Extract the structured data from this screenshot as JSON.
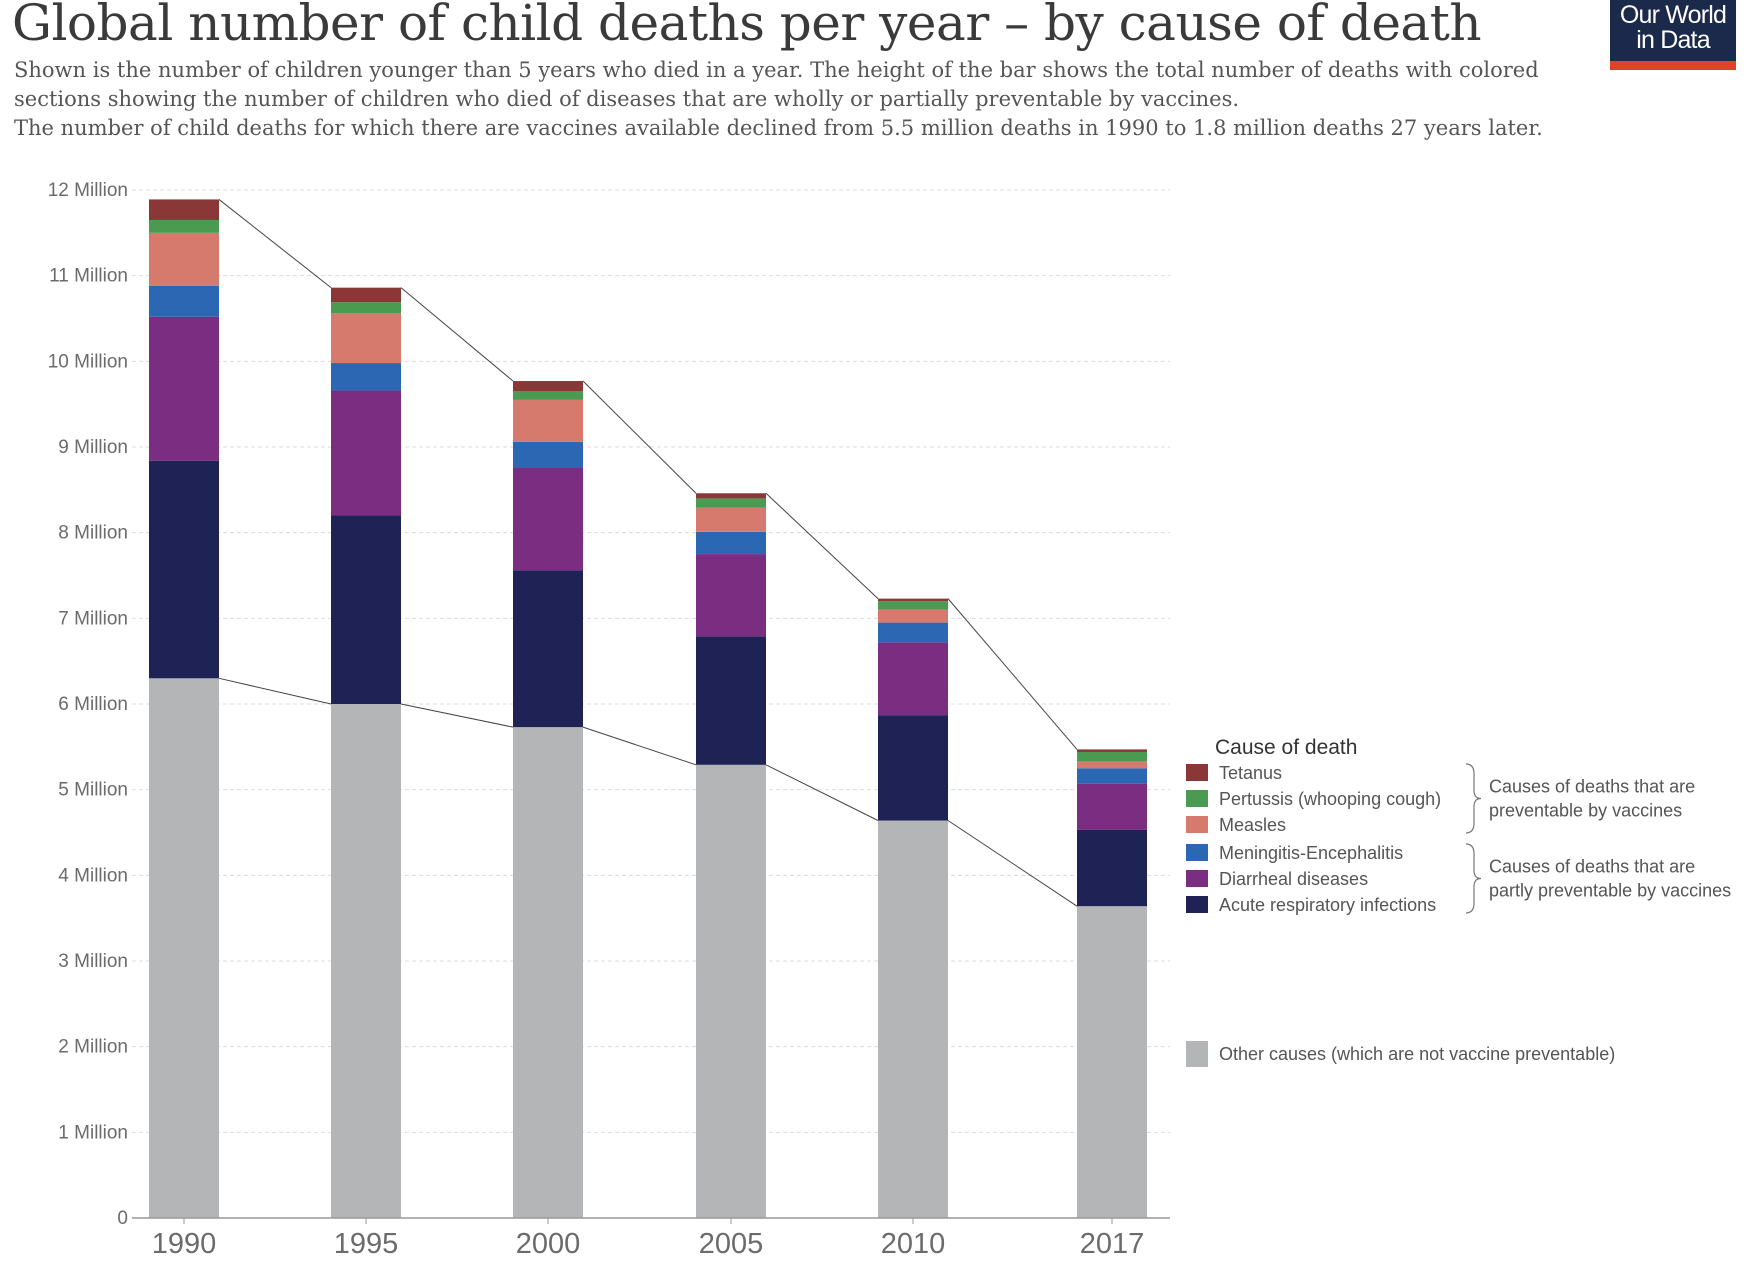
{
  "header": {
    "title": "Global number of child deaths per year – by cause of death",
    "subtitle_lines": [
      "Shown is the number of children younger than 5 years who died in a year. The height of the bar shows the total number of deaths with colored",
      "sections showing the number of children who died of diseases that are wholly or partially preventable by vaccines.",
      "The number of child deaths for which there are vaccines available declined from 5.5 million deaths in 1990 to 1.8 million deaths 27 years later."
    ],
    "logo_line1": "Our World",
    "logo_line2": "in Data"
  },
  "colors": {
    "logo_bg": "#1b2a4a",
    "logo_accent": "#d9442a",
    "axis": "#999999",
    "grid": "#dddddd"
  },
  "chart_data": {
    "type": "bar",
    "stacked": true,
    "categories": [
      "1990",
      "1995",
      "2000",
      "2005",
      "2010",
      "2017"
    ],
    "y_tick_labels": [
      "0",
      "1 Million",
      "2 Million",
      "3 Million",
      "4 Million",
      "5 Million",
      "6 Million",
      "7 Million",
      "8 Million",
      "9 Million",
      "10 Million",
      "11 Million",
      "12 Million"
    ],
    "ylim": [
      0,
      12000000
    ],
    "grid": true,
    "legend_title": "Cause of death",
    "series": [
      {
        "name": "Other causes (which are not vaccine preventable)",
        "color": "#b4b5b7",
        "values": [
          6300000,
          6000000,
          5730000,
          5290000,
          4640000,
          3640000
        ]
      },
      {
        "name": "Acute respiratory infections",
        "color": "#1f2254",
        "values": [
          2540000,
          2200000,
          1830000,
          1500000,
          1230000,
          890000
        ]
      },
      {
        "name": "Diarrheal diseases",
        "color": "#7b2e81",
        "values": [
          1680000,
          1460000,
          1200000,
          960000,
          850000,
          540000
        ]
      },
      {
        "name": "Meningitis-Encephalitis",
        "color": "#2b67b3",
        "values": [
          360000,
          320000,
          300000,
          260000,
          230000,
          180000
        ]
      },
      {
        "name": "Measles",
        "color": "#d57a6c",
        "values": [
          620000,
          580000,
          490000,
          280000,
          150000,
          80000
        ]
      },
      {
        "name": "Pertussis (whooping cough)",
        "color": "#4a9a52",
        "values": [
          150000,
          130000,
          100000,
          110000,
          100000,
          110000
        ]
      },
      {
        "name": "Tetanus",
        "color": "#8a3737",
        "values": [
          240000,
          170000,
          120000,
          60000,
          30000,
          30000
        ]
      }
    ],
    "legend_groups": [
      {
        "label_lines": [
          "Causes of deaths that are",
          "preventable by vaccines"
        ],
        "members": [
          "Tetanus",
          "Pertussis (whooping cough)",
          "Measles"
        ]
      },
      {
        "label_lines": [
          "Causes of deaths that are",
          "partly preventable by vaccines"
        ],
        "members": [
          "Meningitis-Encephalitis",
          "Diarrheal diseases",
          "Acute respiratory infections"
        ]
      }
    ]
  }
}
